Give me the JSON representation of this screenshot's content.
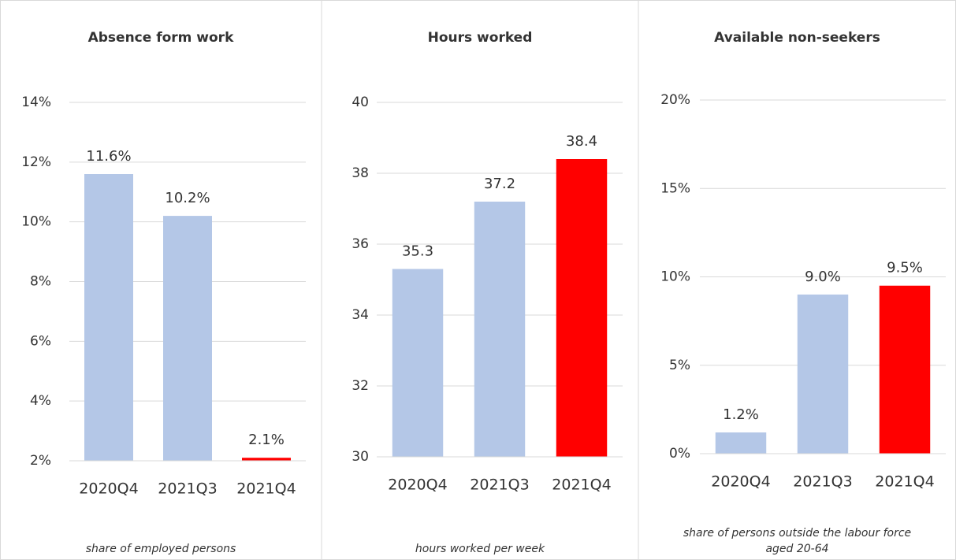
{
  "chart_data": [
    {
      "type": "bar",
      "title": "Absence form work",
      "note": "share of employed persons",
      "categories": [
        "2020Q4",
        "2021Q3",
        "2021Q4"
      ],
      "values": [
        11.6,
        10.2,
        2.1
      ],
      "value_labels": [
        "11.6%",
        "10.2%",
        "2.1%"
      ],
      "colors": [
        "#b4c7e7",
        "#b4c7e7",
        "#ff0000"
      ],
      "ylim": [
        2,
        14
      ],
      "yticks": [
        {
          "value": 2,
          "label": "2%"
        },
        {
          "value": 4,
          "label": "4%"
        },
        {
          "value": 6,
          "label": "6%"
        },
        {
          "value": 8,
          "label": "8%"
        },
        {
          "value": 10,
          "label": "10%"
        },
        {
          "value": 12,
          "label": "12%"
        },
        {
          "value": 14,
          "label": "14%"
        }
      ],
      "grid": true
    },
    {
      "type": "bar",
      "title": "Hours worked",
      "note": "hours worked per week",
      "categories": [
        "2020Q4",
        "2021Q3",
        "2021Q4"
      ],
      "values": [
        35.3,
        37.2,
        38.4
      ],
      "colors": [
        "#b4c7e7",
        "#b4c7e7",
        "#ff0000"
      ],
      "ylim": [
        30,
        40
      ],
      "yticks": [
        30,
        32,
        34,
        36,
        38,
        40
      ],
      "grid": true
    },
    {
      "type": "bar",
      "title": "Available non-seekers",
      "note": "share of persons outside the labour force aged 20-64",
      "categories": [
        "2020Q4",
        "2021Q3",
        "2021Q4"
      ],
      "values": [
        1.2,
        9.0,
        9.5
      ],
      "value_labels": [
        "1.2%",
        "9.0%",
        "9.5%"
      ],
      "colors": [
        "#b4c7e7",
        "#b4c7e7",
        "#ff0000"
      ],
      "ylim": [
        0,
        20
      ],
      "yticks": [
        {
          "value": 0,
          "label": "0%"
        },
        {
          "value": 5,
          "label": "5%"
        },
        {
          "value": 10,
          "label": "10%"
        },
        {
          "value": 15,
          "label": "15%"
        },
        {
          "value": 20,
          "label": "20%"
        }
      ],
      "grid": true
    }
  ]
}
